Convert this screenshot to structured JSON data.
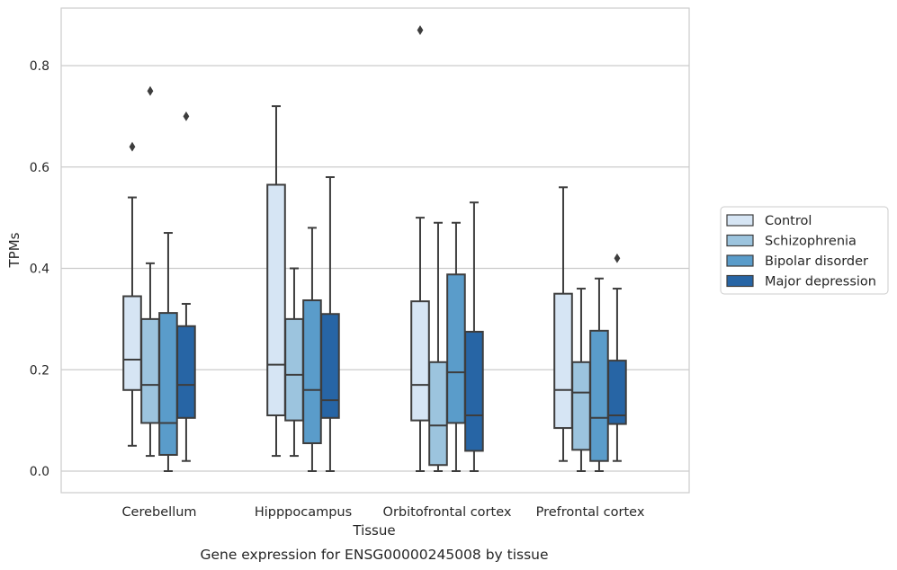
{
  "chart_data": {
    "type": "box",
    "xlabel": "Tissue",
    "ylabel": "TPMs",
    "caption": "Gene expression for ENSG00000245008 by tissue",
    "ylim": [
      -0.04,
      0.92
    ],
    "yticks": [
      0.0,
      0.2,
      0.4,
      0.6,
      0.8
    ],
    "ytick_labels": [
      "0.0",
      "0.2",
      "0.4",
      "0.6",
      "0.8"
    ],
    "grid": "horizontal",
    "legend_position": "right",
    "categories": [
      "Cerebellum",
      "Hipppocampus",
      "Orbitofrontal cortex",
      "Prefrontal cortex"
    ],
    "series": [
      {
        "name": "Control",
        "color": "#d6e5f4",
        "boxes": [
          {
            "whislo": 0.05,
            "q1": 0.16,
            "med": 0.22,
            "q3": 0.345,
            "whishi": 0.54,
            "fliers": [
              0.64
            ]
          },
          {
            "whislo": 0.03,
            "q1": 0.11,
            "med": 0.21,
            "q3": 0.565,
            "whishi": 0.72,
            "fliers": []
          },
          {
            "whislo": 0.0,
            "q1": 0.1,
            "med": 0.17,
            "q3": 0.335,
            "whishi": 0.5,
            "fliers": [
              0.87
            ]
          },
          {
            "whislo": 0.02,
            "q1": 0.085,
            "med": 0.16,
            "q3": 0.35,
            "whishi": 0.56,
            "fliers": []
          }
        ]
      },
      {
        "name": "Schizophrenia",
        "color": "#9cc4de",
        "boxes": [
          {
            "whislo": 0.03,
            "q1": 0.095,
            "med": 0.17,
            "q3": 0.3,
            "whishi": 0.41,
            "fliers": [
              0.75
            ]
          },
          {
            "whislo": 0.03,
            "q1": 0.1,
            "med": 0.19,
            "q3": 0.3,
            "whishi": 0.4,
            "fliers": []
          },
          {
            "whislo": 0.0,
            "q1": 0.012,
            "med": 0.09,
            "q3": 0.215,
            "whishi": 0.49,
            "fliers": []
          },
          {
            "whislo": 0.0,
            "q1": 0.042,
            "med": 0.155,
            "q3": 0.215,
            "whishi": 0.36,
            "fliers": []
          }
        ]
      },
      {
        "name": "Bipolar disorder",
        "color": "#5a9cca",
        "boxes": [
          {
            "whislo": 0.0,
            "q1": 0.032,
            "med": 0.095,
            "q3": 0.312,
            "whishi": 0.47,
            "fliers": []
          },
          {
            "whislo": 0.0,
            "q1": 0.055,
            "med": 0.16,
            "q3": 0.337,
            "whishi": 0.48,
            "fliers": []
          },
          {
            "whislo": 0.0,
            "q1": 0.095,
            "med": 0.195,
            "q3": 0.388,
            "whishi": 0.49,
            "fliers": []
          },
          {
            "whislo": 0.0,
            "q1": 0.02,
            "med": 0.105,
            "q3": 0.277,
            "whishi": 0.38,
            "fliers": []
          }
        ]
      },
      {
        "name": "Major depression",
        "color": "#2765a5",
        "boxes": [
          {
            "whislo": 0.02,
            "q1": 0.105,
            "med": 0.17,
            "q3": 0.286,
            "whishi": 0.33,
            "fliers": [
              0.7
            ]
          },
          {
            "whislo": 0.0,
            "q1": 0.105,
            "med": 0.14,
            "q3": 0.31,
            "whishi": 0.58,
            "fliers": []
          },
          {
            "whislo": 0.0,
            "q1": 0.04,
            "med": 0.11,
            "q3": 0.275,
            "whishi": 0.53,
            "fliers": []
          },
          {
            "whislo": 0.02,
            "q1": 0.093,
            "med": 0.11,
            "q3": 0.218,
            "whishi": 0.36,
            "fliers": [
              0.42
            ]
          }
        ]
      }
    ]
  }
}
